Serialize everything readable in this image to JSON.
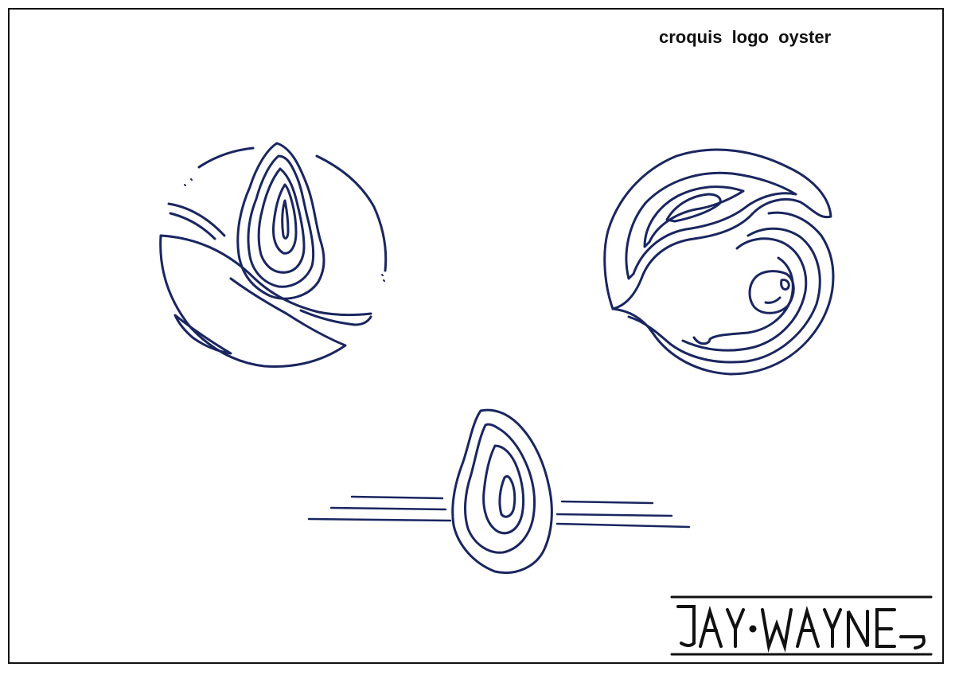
{
  "title": "croquis  logo  oyster",
  "signature": {
    "text": "JAY WAYNE"
  },
  "colors": {
    "ink": "#1a2660",
    "paper": "#ffffff",
    "frame": "#111111"
  },
  "sketches": [
    {
      "name": "oyster-circle-waves"
    },
    {
      "name": "oyster-yin-yang"
    },
    {
      "name": "oyster-speed-lines"
    }
  ]
}
